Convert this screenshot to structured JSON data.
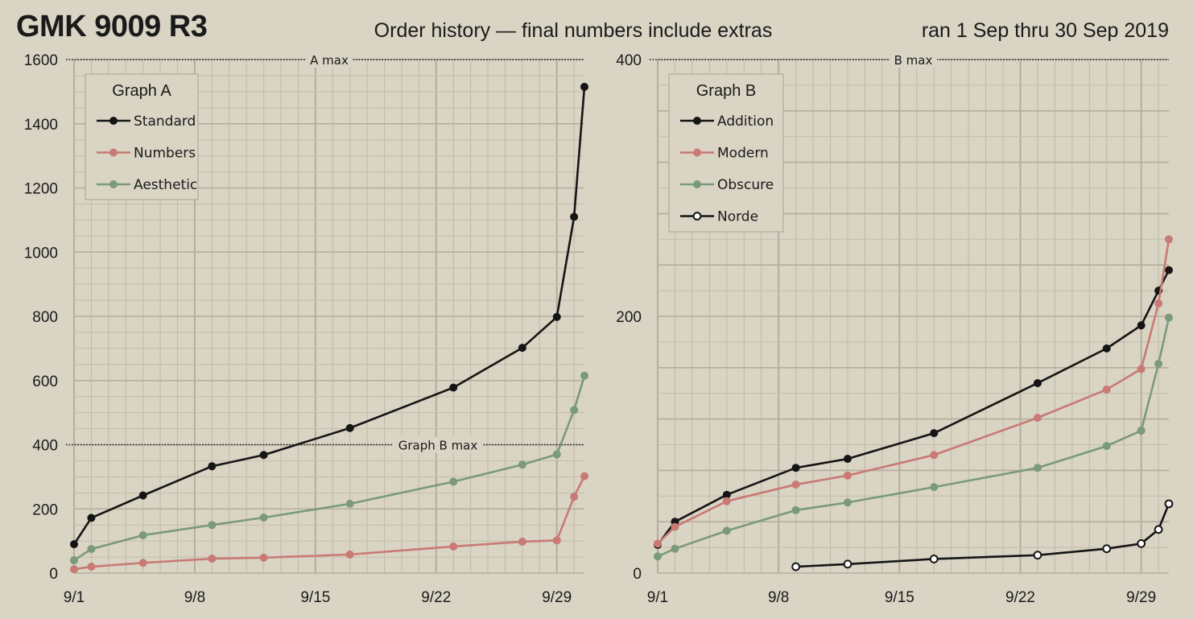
{
  "title": "GMK 9009 R3",
  "subtitle": "Order history — final numbers include extras",
  "date_range": "ran 1 Sep thru 30 Sep 2019",
  "chart_data": [
    {
      "type": "line",
      "legend_title": "Graph A",
      "legend_position": "top-left",
      "grid": true,
      "ylim": [
        0,
        1600
      ],
      "yticks": [
        0,
        200,
        400,
        600,
        800,
        1000,
        1200,
        1400,
        1600
      ],
      "xticks": [
        "9/1",
        "9/8",
        "9/15",
        "9/22",
        "9/29"
      ],
      "annotations": [
        {
          "label": "A max",
          "y": 1600
        },
        {
          "label": "Graph B max",
          "y": 400
        }
      ],
      "series": [
        {
          "name": "Standard",
          "color": "#151515",
          "marker": "filled",
          "points": [
            [
              "9/1",
              90
            ],
            [
              "9/2",
              172
            ],
            [
              "9/5",
              242
            ],
            [
              "9/9",
              333
            ],
            [
              "9/12",
              368
            ],
            [
              "9/17",
              452
            ],
            [
              "9/23",
              578
            ],
            [
              "9/27",
              702
            ],
            [
              "9/29",
              798
            ],
            [
              "9/30",
              1110
            ],
            [
              "9/30 pm",
              1515
            ]
          ]
        },
        {
          "name": "Numbers",
          "color": "#c97a74",
          "marker": "filled",
          "points": [
            [
              "9/1",
              12
            ],
            [
              "9/2",
              20
            ],
            [
              "9/5",
              32
            ],
            [
              "9/9",
              45
            ],
            [
              "9/12",
              48
            ],
            [
              "9/17",
              58
            ],
            [
              "9/23",
              83
            ],
            [
              "9/27",
              98
            ],
            [
              "9/29",
              102
            ],
            [
              "9/30",
              238
            ],
            [
              "9/30 pm",
              302
            ]
          ]
        },
        {
          "name": "Aesthetic",
          "color": "#7a9a7a",
          "marker": "filled",
          "points": [
            [
              "9/1",
              40
            ],
            [
              "9/2",
              75
            ],
            [
              "9/5",
              118
            ],
            [
              "9/9",
              150
            ],
            [
              "9/12",
              173
            ],
            [
              "9/17",
              216
            ],
            [
              "9/23",
              285
            ],
            [
              "9/27",
              338
            ],
            [
              "9/29",
              370
            ],
            [
              "9/30",
              508
            ],
            [
              "9/30 pm",
              615
            ]
          ]
        }
      ]
    },
    {
      "type": "line",
      "legend_title": "Graph B",
      "legend_position": "top-left",
      "grid": true,
      "ylim": [
        0,
        400
      ],
      "yticks": [
        0,
        200,
        400
      ],
      "xticks": [
        "9/1",
        "9/8",
        "9/15",
        "9/22",
        "9/29"
      ],
      "annotations": [
        {
          "label": "B max",
          "y": 400
        }
      ],
      "series": [
        {
          "name": "Addition",
          "color": "#151515",
          "marker": "filled",
          "points": [
            [
              "9/1",
              22
            ],
            [
              "9/2",
              40
            ],
            [
              "9/5",
              61
            ],
            [
              "9/9",
              82
            ],
            [
              "9/12",
              89
            ],
            [
              "9/17",
              109
            ],
            [
              "9/23",
              148
            ],
            [
              "9/27",
              175
            ],
            [
              "9/29",
              193
            ],
            [
              "9/30",
              220
            ],
            [
              "9/30 pm",
              236
            ]
          ]
        },
        {
          "name": "Modern",
          "color": "#c97a74",
          "marker": "filled",
          "points": [
            [
              "9/1",
              23
            ],
            [
              "9/2",
              36
            ],
            [
              "9/5",
              56
            ],
            [
              "9/9",
              69
            ],
            [
              "9/12",
              76
            ],
            [
              "9/17",
              92
            ],
            [
              "9/23",
              121
            ],
            [
              "9/27",
              143
            ],
            [
              "9/29",
              159
            ],
            [
              "9/30",
              210
            ],
            [
              "9/30 pm",
              260
            ]
          ]
        },
        {
          "name": "Obscure",
          "color": "#7a9a7a",
          "marker": "filled",
          "points": [
            [
              "9/1",
              13
            ],
            [
              "9/2",
              19
            ],
            [
              "9/5",
              33
            ],
            [
              "9/9",
              49
            ],
            [
              "9/12",
              55
            ],
            [
              "9/17",
              67
            ],
            [
              "9/23",
              82
            ],
            [
              "9/27",
              99
            ],
            [
              "9/29",
              111
            ],
            [
              "9/30",
              163
            ],
            [
              "9/30 pm",
              199
            ]
          ]
        },
        {
          "name": "Norde",
          "color": "#151515",
          "marker": "hollow",
          "points": [
            [
              "9/9",
              5
            ],
            [
              "9/12",
              7
            ],
            [
              "9/17",
              11
            ],
            [
              "9/23",
              14
            ],
            [
              "9/27",
              19
            ],
            [
              "9/29",
              23
            ],
            [
              "9/30",
              34
            ],
            [
              "9/30 pm",
              54
            ]
          ]
        }
      ]
    }
  ]
}
